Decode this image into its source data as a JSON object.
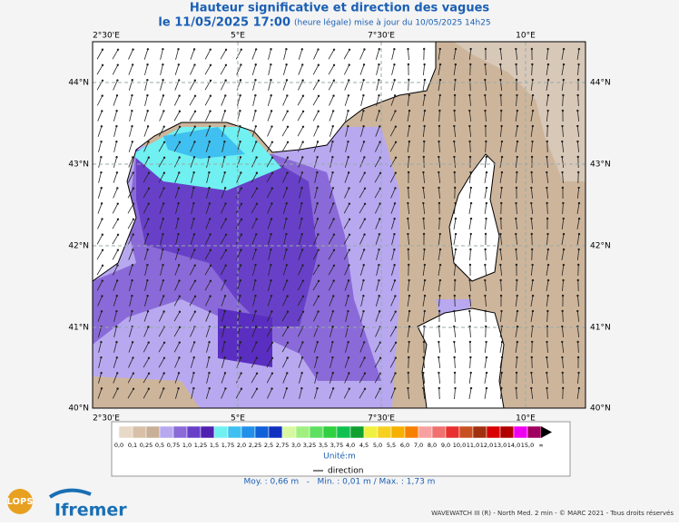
{
  "header": {
    "title": "Hauteur significative et direction des vagues",
    "date": "le 11/05/2025 17:00",
    "update": "(heure légale) mise à jour du 10/05/2025 14h25"
  },
  "map": {
    "lon_labels": [
      "2°30'E",
      "5°E",
      "7°30'E",
      "10°E"
    ],
    "lat_labels": [
      "44°N",
      "43°N",
      "42°N",
      "41°N",
      "40°N"
    ]
  },
  "legend": {
    "labels": [
      "0,0",
      "0,1",
      "0,25",
      "0,5",
      "0,75",
      "1,0",
      "1,25",
      "1,5",
      "1,75",
      "2,0",
      "2,25",
      "2,5",
      "2,75",
      "3,0",
      "3,25",
      "3,5",
      "3,75",
      "4,0",
      "4,5",
      "5,0",
      "5,5",
      "6,0",
      "7,0",
      "8,0",
      "9,0",
      "10,0",
      "11,0",
      "12,0",
      "13,0",
      "14,0",
      "15,0",
      "∞"
    ],
    "colors": [
      "#e8d8c8",
      "#d8c0a8",
      "#c8b098",
      "#b8a8f0",
      "#8a6ad8",
      "#6840c8",
      "#5020b0",
      "#70f0f0",
      "#40c0f0",
      "#2090e8",
      "#1060d8",
      "#1030c0",
      "#d8f8a0",
      "#a0f080",
      "#60e060",
      "#30d040",
      "#10c050",
      "#10a030",
      "#f0f040",
      "#f8d020",
      "#f8b000",
      "#f88000",
      "#f8a0a0",
      "#f07070",
      "#e83030",
      "#c85020",
      "#a03010",
      "#d80000",
      "#b00000",
      "#f000f0",
      "#a00060"
    ],
    "unit": "Unité:m",
    "direction": "direction",
    "stats": "Moy. : 0,66 m   -   Min. : 0,01 m / Max. : 1,73 m"
  },
  "footer": {
    "logo1": "LOPS",
    "logo2": "Ifremer",
    "credits": "WAVEWATCH III (R) - North Med. 2 min - © MARC 2021 - Tous droits réservés"
  }
}
